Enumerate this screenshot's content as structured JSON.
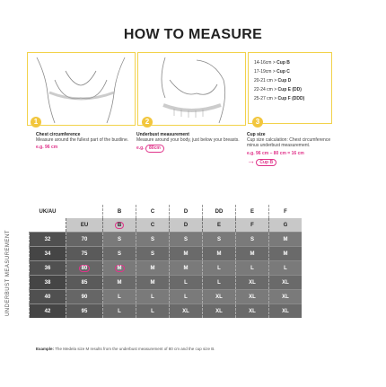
{
  "title": "HOW TO MEASURE",
  "cup_sizes": [
    {
      "range": "14-16cm",
      "cup": "Cup B"
    },
    {
      "range": "17-19cm",
      "cup": "Cup C"
    },
    {
      "range": "20-21 cm",
      "cup": "Cup D"
    },
    {
      "range": "22-24 cm",
      "cup": "Cup E (DD)"
    },
    {
      "range": "25-27 cm",
      "cup": "Cup F (DDD)"
    }
  ],
  "steps": [
    {
      "number": "1",
      "heading": "Chest circumference",
      "text": "Measure around the fullest part of the bustline.",
      "example": "e.g. 96 cm"
    },
    {
      "number": "2",
      "heading": "Underbust measurement",
      "text": "Measure around your body, just below your breasts.",
      "example_prefix": "e.g.",
      "example_value": "80cm"
    },
    {
      "number": "3",
      "heading": "Cup size",
      "text": "Cup size calculation: Chest circumference minus underbust measurement.",
      "example": "e.g. 96 cm – 80 cm = 16 cm",
      "result_arrow": "→",
      "result": "Cup B"
    }
  ],
  "side_label": "UNDERBUST MEASUREMENT",
  "table": {
    "uk_au_label": "UK/AU",
    "eu_label": "EU",
    "uk_au_cups": [
      "B",
      "C",
      "D",
      "DD",
      "E",
      "F"
    ],
    "eu_cups": [
      "B",
      "C",
      "D",
      "E",
      "F",
      "G"
    ],
    "rows": [
      {
        "uk": "32",
        "eu": "70",
        "sizes": [
          "S",
          "S",
          "S",
          "S",
          "S",
          "M"
        ]
      },
      {
        "uk": "34",
        "eu": "75",
        "sizes": [
          "S",
          "S",
          "M",
          "M",
          "M",
          "M"
        ]
      },
      {
        "uk": "36",
        "eu": "80",
        "sizes": [
          "M",
          "M",
          "M",
          "L",
          "L",
          "L"
        ]
      },
      {
        "uk": "38",
        "eu": "85",
        "sizes": [
          "M",
          "M",
          "L",
          "L",
          "XL",
          "XL"
        ]
      },
      {
        "uk": "40",
        "eu": "90",
        "sizes": [
          "L",
          "L",
          "L",
          "XL",
          "XL",
          "XL"
        ]
      },
      {
        "uk": "42",
        "eu": "95",
        "sizes": [
          "L",
          "L",
          "XL",
          "XL",
          "XL",
          "XL"
        ]
      }
    ]
  },
  "footnote_label": "Example:",
  "footnote": "The Medela size M results from the underbust measurement of 80 cm and the cup size B.",
  "colors": {
    "accent": "#e0338a",
    "badge": "#f2c63d",
    "panel_border": "#f2d24a",
    "table_dark": "#505050"
  }
}
